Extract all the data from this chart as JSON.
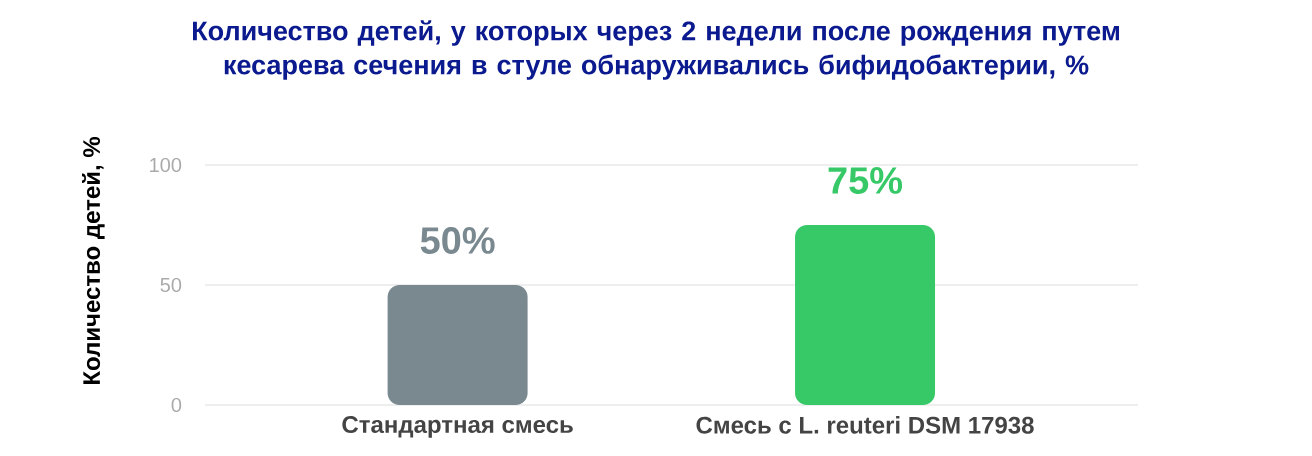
{
  "chart_data": {
    "type": "bar",
    "title": "Количество детей, у которых через 2 недели после рождения путем кесарева сечения в стуле обнаруживались бифидобактерии, %",
    "ylabel": "Количество детей, %",
    "categories": [
      "Стандартная смесь",
      "Смесь с L. reuteri DSM 17938"
    ],
    "values": [
      50,
      75
    ],
    "colors": [
      "#7a8990",
      "#37c968"
    ],
    "value_labels": [
      "50%",
      "75%"
    ],
    "ylim": [
      0,
      100
    ],
    "yticks": [
      0,
      50,
      100
    ],
    "grid": "y"
  }
}
